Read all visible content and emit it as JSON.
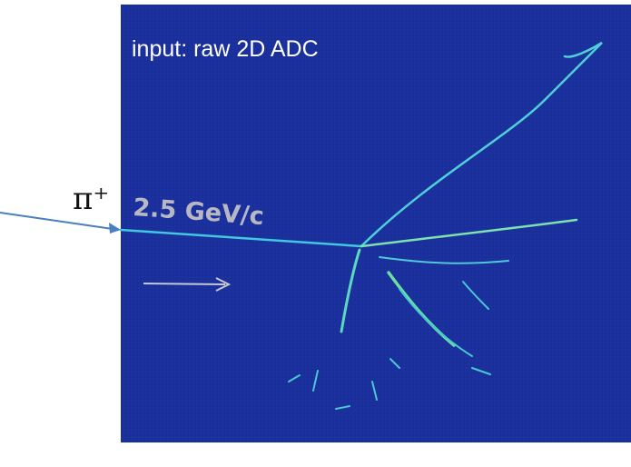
{
  "caption": "input: raw 2D ADC",
  "particle": "π⁺",
  "momentum": "2.5 GeV/c"
}
